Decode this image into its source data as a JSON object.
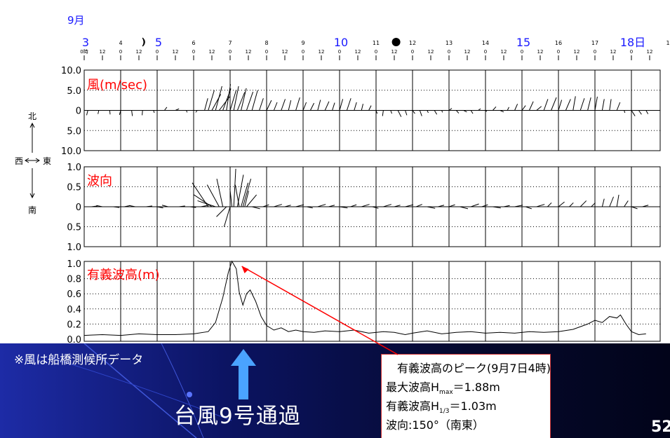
{
  "month_label": "9月",
  "day_marks": [
    "3",
    "4",
    "5",
    "6",
    "7",
    "8",
    "9",
    "10",
    "11",
    "12",
    "13",
    "14",
    "15",
    "16",
    "17",
    "18日",
    "1"
  ],
  "day_large": [
    "3",
    "5",
    "10",
    "15",
    "18日"
  ],
  "hour_labels": [
    "0時",
    "12"
  ],
  "tick_label_zero": "0",
  "tick_label_twelve": "12",
  "compass": {
    "north": "北",
    "south": "南",
    "west": "西",
    "east": "東"
  },
  "colors": {
    "accent_red": "#ff0000",
    "accent_blue": "#1a1aff",
    "arrow_blue": "#4aa3ff"
  },
  "chart_data": [
    {
      "type": "wind-vectors",
      "title": "風(m/sec)",
      "y_tick_labels": [
        "10.0",
        "5.0",
        "0",
        "5.0",
        "10.0"
      ],
      "ylim": [
        -10,
        10
      ]
    },
    {
      "type": "wave-direction-vectors",
      "title": "波向",
      "y_tick_labels": [
        "1.0",
        "0.5",
        "0",
        "0.5",
        "1.0"
      ],
      "ylim": [
        -1,
        1
      ]
    },
    {
      "type": "line",
      "title": "有義波高(m)",
      "y_tick_labels": [
        "1.0",
        "0.8",
        "0.6",
        "0.4",
        "0.2",
        "0.0"
      ],
      "ylim": [
        0,
        1.0
      ],
      "x_days": [
        3.0,
        3.5,
        4.0,
        4.5,
        5.0,
        5.5,
        6.0,
        6.4,
        6.6,
        6.8,
        6.95,
        7.05,
        7.17,
        7.25,
        7.35,
        7.45,
        7.55,
        7.7,
        7.85,
        8.0,
        8.2,
        8.4,
        8.6,
        8.8,
        9.0,
        9.3,
        9.6,
        10.0,
        10.4,
        10.8,
        11.2,
        11.5,
        11.8,
        12.0,
        12.4,
        12.8,
        13.2,
        13.6,
        14.0,
        14.4,
        14.8,
        15.2,
        15.6,
        16.0,
        16.4,
        16.8,
        17.0,
        17.2,
        17.4,
        17.6,
        17.7,
        17.85,
        18.0,
        18.2,
        18.4
      ],
      "values": [
        0.05,
        0.06,
        0.05,
        0.07,
        0.06,
        0.06,
        0.07,
        0.1,
        0.22,
        0.55,
        0.88,
        1.03,
        0.93,
        0.62,
        0.45,
        0.6,
        0.65,
        0.5,
        0.3,
        0.18,
        0.12,
        0.15,
        0.1,
        0.12,
        0.1,
        0.09,
        0.11,
        0.1,
        0.12,
        0.08,
        0.1,
        0.09,
        0.06,
        0.08,
        0.11,
        0.07,
        0.09,
        0.1,
        0.08,
        0.09,
        0.08,
        0.1,
        0.09,
        0.1,
        0.13,
        0.2,
        0.25,
        0.22,
        0.3,
        0.28,
        0.32,
        0.2,
        0.1,
        0.06,
        0.07
      ]
    }
  ],
  "wind_vectors": [
    [
      3.1,
      -0.3,
      -1.2
    ],
    [
      3.4,
      -0.2,
      -0.9
    ],
    [
      3.7,
      0.1,
      -1.0
    ],
    [
      4.0,
      -0.3,
      -1.1
    ],
    [
      4.3,
      0.2,
      -1.4
    ],
    [
      4.6,
      -0.1,
      -1.2
    ],
    [
      4.9,
      0.2,
      -0.6
    ],
    [
      5.2,
      0.6,
      0.8
    ],
    [
      5.5,
      0.9,
      0.4
    ],
    [
      5.8,
      0.2,
      -0.5
    ],
    [
      6.1,
      -0.4,
      -0.5
    ],
    [
      6.3,
      0.8,
      3.0
    ],
    [
      6.4,
      1.5,
      5.0
    ],
    [
      6.5,
      2.2,
      4.0
    ],
    [
      6.6,
      1.6,
      6.0
    ],
    [
      6.7,
      2.6,
      3.4
    ],
    [
      6.8,
      2.0,
      5.4
    ],
    [
      6.9,
      1.0,
      6.5
    ],
    [
      7.0,
      1.5,
      5.0
    ],
    [
      7.1,
      1.2,
      6.0
    ],
    [
      7.2,
      1.8,
      4.5
    ],
    [
      7.3,
      1.3,
      5.5
    ],
    [
      7.45,
      1.6,
      4.6
    ],
    [
      7.6,
      1.4,
      5.0
    ],
    [
      7.8,
      1.0,
      3.0
    ],
    [
      8.0,
      1.2,
      2.5
    ],
    [
      8.2,
      0.8,
      2.0
    ],
    [
      8.4,
      1.0,
      2.8
    ],
    [
      8.6,
      0.6,
      2.5
    ],
    [
      8.8,
      1.0,
      3.2
    ],
    [
      9.0,
      0.8,
      2.0
    ],
    [
      9.2,
      0.9,
      1.8
    ],
    [
      9.4,
      0.7,
      2.6
    ],
    [
      9.6,
      1.0,
      2.2
    ],
    [
      9.8,
      0.6,
      1.9
    ],
    [
      10.0,
      0.8,
      2.8
    ],
    [
      10.2,
      1.0,
      3.0
    ],
    [
      10.4,
      0.6,
      2.0
    ],
    [
      10.6,
      0.4,
      1.6
    ],
    [
      10.8,
      0.6,
      1.2
    ],
    [
      11.0,
      0.3,
      -0.8
    ],
    [
      11.2,
      -0.2,
      -1.4
    ],
    [
      11.4,
      0.3,
      -0.8
    ],
    [
      11.6,
      0.8,
      -1.6
    ],
    [
      11.8,
      0.4,
      -1.2
    ],
    [
      12.0,
      0.6,
      -0.8
    ],
    [
      12.2,
      0.5,
      -1.4
    ],
    [
      12.4,
      0.3,
      -0.6
    ],
    [
      12.6,
      0.6,
      -1.0
    ],
    [
      12.8,
      0.2,
      -0.5
    ],
    [
      13.0,
      0.7,
      0.5
    ],
    [
      13.2,
      0.6,
      -0.7
    ],
    [
      13.4,
      0.8,
      -0.4
    ],
    [
      13.6,
      0.5,
      -0.8
    ],
    [
      13.8,
      0.6,
      0.4
    ],
    [
      14.0,
      0.3,
      -0.3
    ],
    [
      14.2,
      0.8,
      0.9
    ],
    [
      14.4,
      0.9,
      -0.4
    ],
    [
      14.6,
      0.4,
      0.8
    ],
    [
      14.8,
      0.7,
      1.6
    ],
    [
      15.0,
      0.9,
      1.2
    ],
    [
      15.2,
      1.0,
      2.2
    ],
    [
      15.4,
      1.2,
      1.0
    ],
    [
      15.6,
      1.0,
      2.8
    ],
    [
      15.8,
      1.3,
      3.2
    ],
    [
      16.0,
      0.8,
      2.6
    ],
    [
      16.2,
      1.2,
      2.8
    ],
    [
      16.4,
      0.6,
      3.5
    ],
    [
      16.6,
      1.0,
      3.0
    ],
    [
      16.8,
      0.8,
      3.2
    ],
    [
      17.0,
      0.6,
      3.4
    ],
    [
      17.2,
      0.5,
      2.8
    ],
    [
      17.4,
      0.4,
      2.8
    ],
    [
      17.6,
      0.8,
      2.0
    ],
    [
      17.8,
      0.2,
      -0.6
    ],
    [
      18.0,
      0.9,
      -1.4
    ],
    [
      18.2,
      0.7,
      -1.0
    ],
    [
      18.4,
      0.5,
      -0.9
    ]
  ],
  "wave_vectors": [
    [
      3.2,
      0.3,
      0.02
    ],
    [
      3.5,
      -0.3,
      0.03
    ],
    [
      3.8,
      0.3,
      -0.02
    ],
    [
      4.1,
      0.3,
      0.03
    ],
    [
      4.4,
      -0.3,
      0.03
    ],
    [
      4.7,
      0.3,
      0.02
    ],
    [
      5.0,
      0.3,
      -0.03
    ],
    [
      5.3,
      -0.3,
      0.04
    ],
    [
      5.6,
      0.3,
      0.02
    ],
    [
      5.9,
      0.3,
      -0.02
    ],
    [
      6.2,
      0.4,
      0.04
    ],
    [
      6.4,
      -0.8,
      0.6
    ],
    [
      6.5,
      -0.9,
      0.3
    ],
    [
      6.6,
      -0.9,
      0.15
    ],
    [
      6.7,
      -0.6,
      0.55
    ],
    [
      6.8,
      -0.3,
      0.7
    ],
    [
      6.9,
      -0.5,
      -0.25
    ],
    [
      7.0,
      -0.3,
      -0.5
    ],
    [
      7.05,
      -0.1,
      0.45
    ],
    [
      7.1,
      0.1,
      0.95
    ],
    [
      7.2,
      0.3,
      0.8
    ],
    [
      7.25,
      -0.2,
      0.55
    ],
    [
      7.3,
      0.35,
      0.6
    ],
    [
      7.35,
      0.4,
      0.7
    ],
    [
      7.4,
      0.2,
      0.4
    ],
    [
      7.45,
      0.5,
      0.3
    ],
    [
      7.6,
      0.4,
      -0.05
    ],
    [
      7.9,
      0.3,
      0.05
    ],
    [
      8.2,
      0.4,
      0.06
    ],
    [
      8.5,
      0.3,
      0.04
    ],
    [
      8.8,
      0.4,
      0.05
    ],
    [
      9.1,
      0.3,
      -0.03
    ],
    [
      9.4,
      0.4,
      0.06
    ],
    [
      9.7,
      0.3,
      0.04
    ],
    [
      10.0,
      0.4,
      -0.03
    ],
    [
      10.3,
      0.3,
      0.05
    ],
    [
      10.6,
      0.4,
      0.06
    ],
    [
      10.9,
      0.3,
      -0.04
    ],
    [
      11.2,
      0.4,
      0.06
    ],
    [
      11.5,
      0.3,
      0.04
    ],
    [
      11.8,
      0.4,
      0.05
    ],
    [
      12.1,
      0.3,
      0.06
    ],
    [
      12.4,
      0.4,
      -0.04
    ],
    [
      12.7,
      0.3,
      0.04
    ],
    [
      13.0,
      0.3,
      0.05
    ],
    [
      13.3,
      0.4,
      -0.05
    ],
    [
      13.6,
      0.4,
      0.07
    ],
    [
      13.9,
      0.3,
      0.05
    ],
    [
      14.2,
      0.4,
      -0.03
    ],
    [
      14.5,
      0.3,
      0.03
    ],
    [
      14.8,
      0.4,
      0.04
    ],
    [
      15.1,
      0.3,
      -0.05
    ],
    [
      15.4,
      0.4,
      0.06
    ],
    [
      15.7,
      0.2,
      0.1
    ],
    [
      16.0,
      0.3,
      0.12
    ],
    [
      16.3,
      0.2,
      0.1
    ],
    [
      16.6,
      0.3,
      0.15
    ],
    [
      16.9,
      0.2,
      0.1
    ],
    [
      17.2,
      0.1,
      0.2
    ],
    [
      17.4,
      0.2,
      0.25
    ],
    [
      17.6,
      0.1,
      0.3
    ],
    [
      17.8,
      0.2,
      0.15
    ],
    [
      18.0,
      0.3,
      -0.05
    ],
    [
      18.3,
      0.3,
      0.04
    ]
  ],
  "note": "※風は船橋測候所データ",
  "typhoon_label": "台風9号通過",
  "peak_box": {
    "heading": "有義波高のピーク(9月7日4時)",
    "max_prefix": "最大波高H",
    "max_sub": "max",
    "max_value": "＝1.88m",
    "sig_prefix": "有義波高H",
    "sig_sub": "1/3",
    "sig_value": "＝1.03m",
    "dir_line": "波向:150°（南東）"
  },
  "page_number": "52"
}
